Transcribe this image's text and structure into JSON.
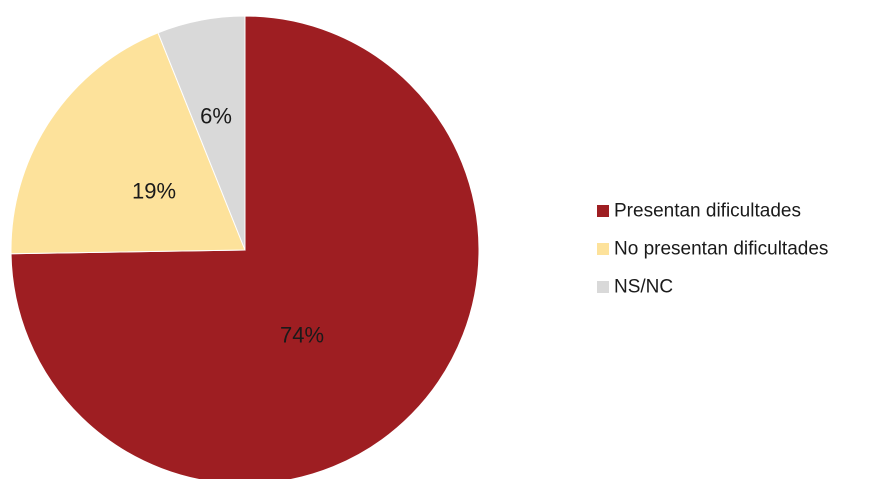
{
  "chart_data": {
    "type": "pie",
    "title": "",
    "categories": [
      "Presentan dificultades",
      "No presentan dificultades",
      "NS/NC"
    ],
    "values": [
      74,
      19,
      6
    ],
    "data_labels": [
      "74%",
      "19%",
      "6%"
    ],
    "colors": [
      "#9E1E22",
      "#FDE29B",
      "#D9D9D9"
    ],
    "start_angle_deg": 0,
    "direction": "clockwise",
    "legend": {
      "placement": "right",
      "entries": [
        "Presentan dificultades",
        "No presentan dificultades",
        "NS/NC"
      ]
    }
  }
}
